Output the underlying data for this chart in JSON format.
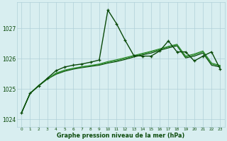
{
  "x": [
    0,
    1,
    2,
    3,
    4,
    5,
    6,
    7,
    8,
    9,
    10,
    11,
    12,
    13,
    14,
    15,
    16,
    17,
    18,
    19,
    20,
    21,
    22,
    23
  ],
  "series_main": [
    1024.2,
    1024.85,
    1025.1,
    1025.35,
    1025.6,
    1025.72,
    1025.78,
    1025.82,
    1025.88,
    1025.95,
    1027.6,
    1027.15,
    1026.6,
    1026.1,
    1026.08,
    1026.08,
    1026.25,
    1026.58,
    1026.22,
    1026.22,
    1025.92,
    1026.08,
    1026.22,
    1025.65
  ],
  "series_smooth1": [
    1024.2,
    1024.85,
    1025.1,
    1025.32,
    1025.5,
    1025.6,
    1025.67,
    1025.72,
    1025.76,
    1025.8,
    1025.87,
    1025.93,
    1026.0,
    1026.08,
    1026.15,
    1026.22,
    1026.3,
    1026.38,
    1026.45,
    1026.05,
    1026.12,
    1026.22,
    1025.82,
    1025.75
  ],
  "series_smooth2": [
    1024.2,
    1024.85,
    1025.12,
    1025.33,
    1025.52,
    1025.62,
    1025.68,
    1025.73,
    1025.77,
    1025.82,
    1025.9,
    1025.96,
    1026.03,
    1026.1,
    1026.17,
    1026.24,
    1026.32,
    1026.4,
    1026.47,
    1026.08,
    1026.15,
    1026.25,
    1025.85,
    1025.77
  ],
  "series_trend": [
    1024.2,
    1024.85,
    1025.1,
    1025.32,
    1025.48,
    1025.58,
    1025.65,
    1025.7,
    1025.74,
    1025.78,
    1025.85,
    1025.9,
    1025.97,
    1026.05,
    1026.12,
    1026.18,
    1026.27,
    1026.35,
    1026.42,
    1026.02,
    1026.08,
    1026.18,
    1025.78,
    1025.72
  ],
  "color_light": "#2d8a2d",
  "color_dark": "#0a4a0a",
  "color_medium": "#1a6a1a",
  "bg_color": "#d8eef0",
  "grid_color": "#b0d0d8",
  "xlabel": "Graphe pression niveau de la mer (hPa)",
  "xlabel_color": "#0a4a0a",
  "ylabel_ticks": [
    1024,
    1025,
    1026,
    1027
  ],
  "ylim": [
    1023.75,
    1027.85
  ],
  "xlim": [
    -0.5,
    23.5
  ]
}
